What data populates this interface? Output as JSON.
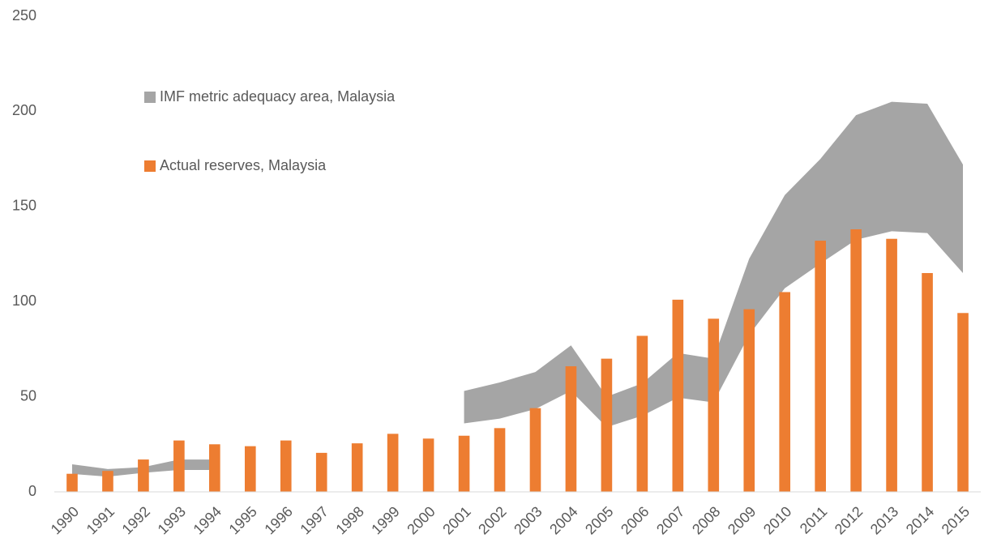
{
  "chart_data": {
    "type": "combo",
    "categories": [
      "1990",
      "1991",
      "1992",
      "1993",
      "1994",
      "1995",
      "1996",
      "1997",
      "1998",
      "1999",
      "2000",
      "2001",
      "2002",
      "2003",
      "2004",
      "2005",
      "2006",
      "2007",
      "2008",
      "2009",
      "2010",
      "2011",
      "2012",
      "2013",
      "2014",
      "2015"
    ],
    "series": [
      {
        "name": "IMF metric adequacy area, Malaysia",
        "type": "area",
        "color": "#a5a5a5",
        "upper": [
          14.5,
          12,
          13,
          17,
          17,
          null,
          null,
          null,
          null,
          null,
          null,
          53,
          57.5,
          63,
          77,
          50,
          57,
          73,
          70,
          122.5,
          156,
          175,
          198,
          205,
          204,
          172
        ],
        "lower": [
          9.4,
          8,
          10,
          11.5,
          11.5,
          null,
          null,
          null,
          null,
          null,
          null,
          36,
          38.5,
          43.5,
          53,
          34,
          40,
          49.5,
          47,
          82.5,
          107,
          120,
          132.5,
          137,
          136,
          115
        ]
      },
      {
        "name": "Actual reserves, Malaysia",
        "type": "bar",
        "color": "#ed7d31",
        "values": [
          9.5,
          11,
          17,
          27,
          25,
          24,
          27,
          20.5,
          25.5,
          30.5,
          28,
          29.5,
          33.5,
          44,
          66,
          70,
          82,
          101,
          91,
          96,
          105,
          132,
          138,
          133,
          115,
          94
        ]
      }
    ],
    "ylim": [
      0,
      250
    ],
    "yticks": [
      0,
      50,
      100,
      150,
      200,
      250
    ],
    "grid": false,
    "legend": "upper-left"
  }
}
